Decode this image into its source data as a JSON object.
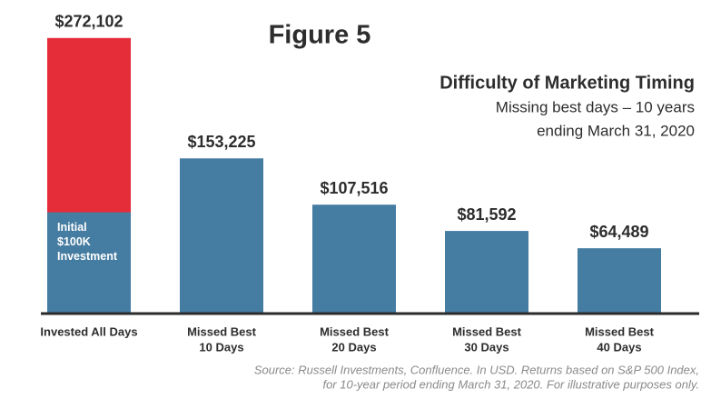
{
  "chart_data": {
    "type": "bar",
    "title": "Figure 5",
    "subtitle": [
      "Difficulty of Marketing Timing",
      "Missing best days – 10 years",
      "ending March 31, 2020"
    ],
    "categories": [
      [
        "Invested All Days"
      ],
      [
        "Missed Best",
        "10 Days"
      ],
      [
        "Missed Best",
        "20 Days"
      ],
      [
        "Missed Best",
        "30 Days"
      ],
      [
        "Missed Best",
        "40 Days"
      ]
    ],
    "values": [
      272102,
      153225,
      107516,
      81592,
      64489
    ],
    "value_labels": [
      "$272,102",
      "$153,225",
      "$107,516",
      "$81,592",
      "$64,489"
    ],
    "colors": [
      "#e52d3a",
      "#457ca1",
      "#457ca1",
      "#457ca1",
      "#457ca1"
    ],
    "initial_investment": {
      "value": 100000,
      "label": [
        "Initial",
        "$100K",
        "Investment"
      ],
      "color": "#457ca1"
    },
    "ylim": [
      0,
      280000
    ],
    "source": [
      "Source: Russell Investments, Confluence. In USD. Returns based on S&P 500 Index,",
      "for 10-year period ending March 31, 2020. For illustrative purposes only."
    ]
  }
}
